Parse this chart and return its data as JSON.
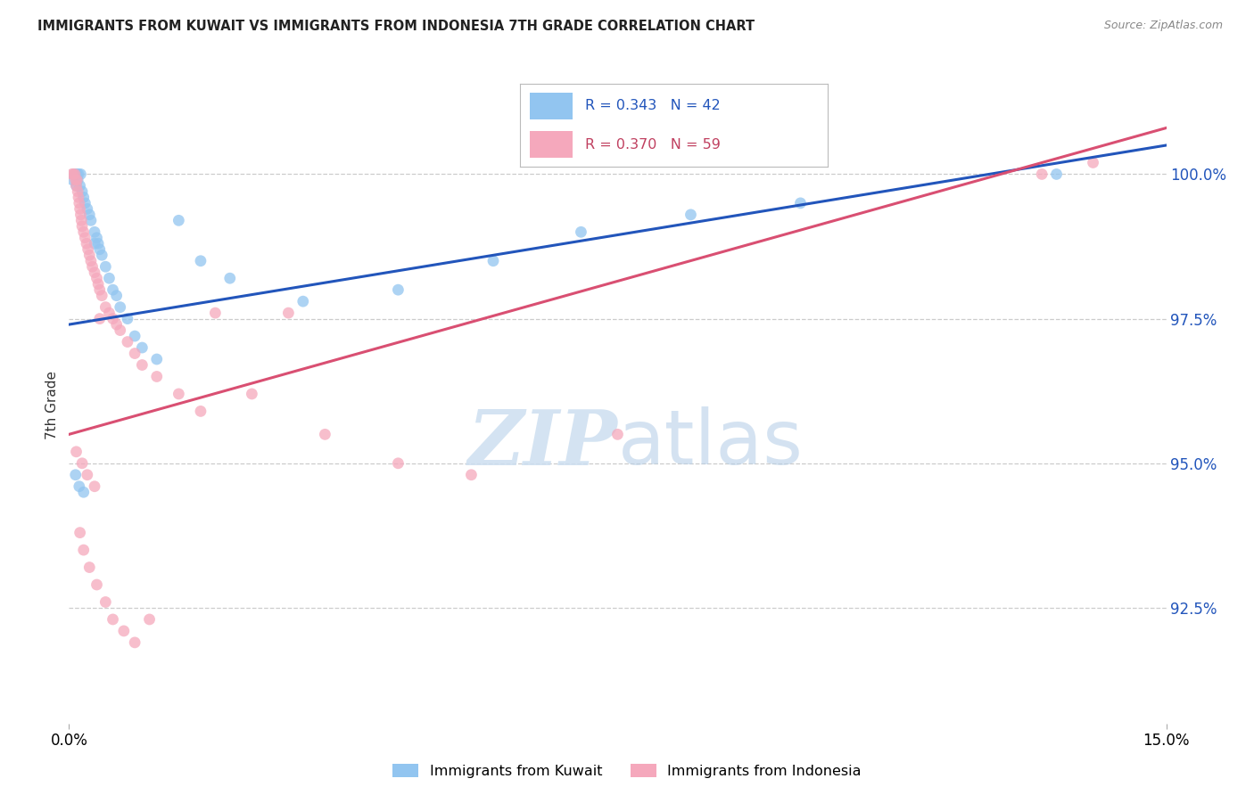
{
  "title": "IMMIGRANTS FROM KUWAIT VS IMMIGRANTS FROM INDONESIA 7TH GRADE CORRELATION CHART",
  "source": "Source: ZipAtlas.com",
  "ylabel": "7th Grade",
  "xlim": [
    0.0,
    15.0
  ],
  "ylim": [
    90.5,
    101.5
  ],
  "right_yticks": [
    92.5,
    95.0,
    97.5,
    100.0
  ],
  "legend_blue_label": "Immigrants from Kuwait",
  "legend_pink_label": "Immigrants from Indonesia",
  "blue_color": "#92c5f0",
  "pink_color": "#f5a8bc",
  "blue_line_color": "#2255bb",
  "pink_line_color": "#d94f72",
  "blue_text_color": "#2255bb",
  "pink_text_color": "#c04060",
  "background_color": "#ffffff",
  "blue_line_x0": 0.0,
  "blue_line_y0": 97.4,
  "blue_line_x1": 15.0,
  "blue_line_y1": 100.5,
  "pink_line_x0": 0.0,
  "pink_line_y0": 95.5,
  "pink_line_x1": 15.0,
  "pink_line_y1": 100.8,
  "kuwait_x": [
    0.05,
    0.08,
    0.1,
    0.11,
    0.12,
    0.13,
    0.15,
    0.16,
    0.18,
    0.2,
    0.22,
    0.25,
    0.28,
    0.3,
    0.35,
    0.38,
    0.4,
    0.42,
    0.45,
    0.5,
    0.55,
    0.6,
    0.65,
    0.7,
    0.8,
    0.9,
    1.0,
    1.2,
    1.5,
    1.8,
    2.2,
    3.2,
    4.5,
    5.8,
    7.0,
    8.5,
    10.0,
    13.5,
    0.09,
    0.14,
    0.2,
    0.35
  ],
  "kuwait_y": [
    99.9,
    100.0,
    99.8,
    100.0,
    99.9,
    100.0,
    99.8,
    100.0,
    99.7,
    99.6,
    99.5,
    99.4,
    99.3,
    99.2,
    99.0,
    98.9,
    98.8,
    98.7,
    98.6,
    98.4,
    98.2,
    98.0,
    97.9,
    97.7,
    97.5,
    97.2,
    97.0,
    96.8,
    99.2,
    98.5,
    98.2,
    97.8,
    98.0,
    98.5,
    99.0,
    99.3,
    99.5,
    100.0,
    94.8,
    94.6,
    94.5,
    98.8
  ],
  "indonesia_x": [
    0.04,
    0.06,
    0.08,
    0.09,
    0.1,
    0.11,
    0.12,
    0.13,
    0.14,
    0.15,
    0.16,
    0.17,
    0.18,
    0.2,
    0.22,
    0.24,
    0.26,
    0.28,
    0.3,
    0.32,
    0.35,
    0.38,
    0.4,
    0.42,
    0.45,
    0.5,
    0.55,
    0.6,
    0.65,
    0.7,
    0.8,
    0.9,
    1.0,
    1.2,
    1.5,
    1.8,
    2.0,
    2.5,
    3.0,
    3.5,
    4.5,
    5.5,
    7.5,
    13.3,
    14.0,
    0.1,
    0.18,
    0.25,
    0.35,
    0.42,
    0.15,
    0.2,
    0.28,
    0.38,
    0.5,
    0.6,
    0.75,
    0.9,
    1.1
  ],
  "indonesia_y": [
    100.0,
    100.0,
    100.0,
    99.9,
    99.8,
    99.9,
    99.7,
    99.6,
    99.5,
    99.4,
    99.3,
    99.2,
    99.1,
    99.0,
    98.9,
    98.8,
    98.7,
    98.6,
    98.5,
    98.4,
    98.3,
    98.2,
    98.1,
    98.0,
    97.9,
    97.7,
    97.6,
    97.5,
    97.4,
    97.3,
    97.1,
    96.9,
    96.7,
    96.5,
    96.2,
    95.9,
    97.6,
    96.2,
    97.6,
    95.5,
    95.0,
    94.8,
    95.5,
    100.0,
    100.2,
    95.2,
    95.0,
    94.8,
    94.6,
    97.5,
    93.8,
    93.5,
    93.2,
    92.9,
    92.6,
    92.3,
    92.1,
    91.9,
    92.3
  ]
}
